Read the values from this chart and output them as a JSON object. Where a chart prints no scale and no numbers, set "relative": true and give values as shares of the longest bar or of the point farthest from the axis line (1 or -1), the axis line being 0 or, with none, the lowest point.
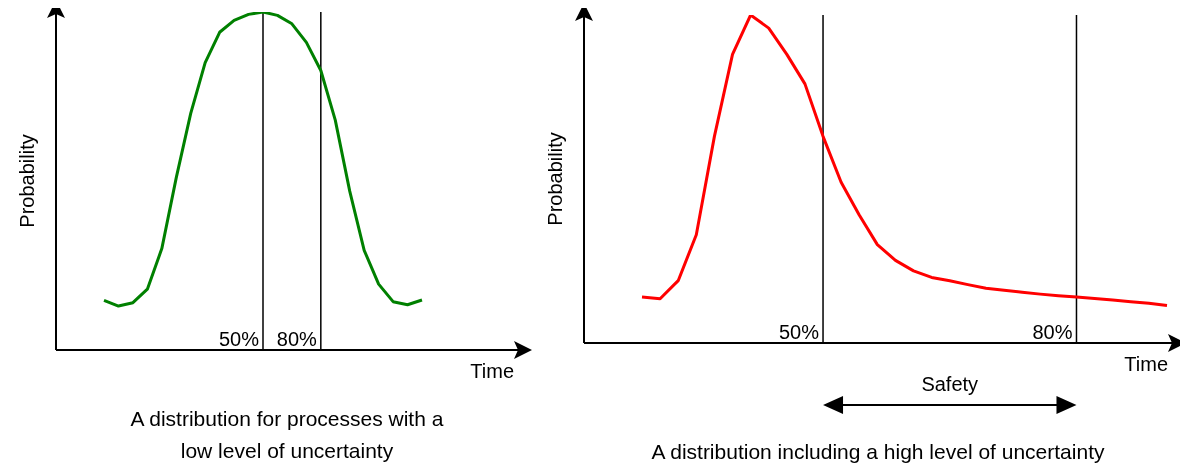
{
  "chart_data": [
    {
      "type": "line",
      "title": "A distribution for processes with a low level of uncertainty",
      "xlabel": "Time",
      "ylabel": "Probability",
      "relative": true,
      "categories": [
        null,
        null,
        null,
        null,
        null,
        null,
        null,
        null,
        null,
        null,
        null,
        null,
        null,
        null,
        null,
        null,
        null,
        null,
        null,
        null,
        null,
        null,
        null
      ],
      "series": [
        {
          "color": "#008000",
          "values": [
            0.147,
            0.13,
            0.14,
            0.18,
            0.3,
            0.51,
            0.7,
            0.85,
            0.94,
            0.975,
            0.993,
            1,
            0.99,
            0.965,
            0.91,
            0.827,
            0.68,
            0.47,
            0.295,
            0.195,
            0.143,
            0.134,
            0.148
          ]
        }
      ],
      "annotations": [
        "50%",
        "80%"
      ]
    },
    {
      "type": "line",
      "title": "A distribution including a high level of uncertainty",
      "xlabel": "Time",
      "ylabel": "Probability",
      "relative": true,
      "categories": [
        null,
        null,
        null,
        null,
        null,
        null,
        null,
        null,
        null,
        null,
        null,
        null,
        null,
        null,
        null,
        null,
        null,
        null,
        null,
        null,
        null,
        null,
        null,
        null,
        null,
        null,
        null,
        null,
        null,
        null
      ],
      "series": [
        {
          "color": "#ff0000",
          "values": [
            0.14,
            0.135,
            0.19,
            0.33,
            0.63,
            0.88,
            1,
            0.96,
            0.88,
            0.79,
            0.63,
            0.49,
            0.39,
            0.3,
            0.252,
            0.22,
            0.2,
            0.19,
            0.178,
            0.167,
            0.161,
            0.155,
            0.149,
            0.144,
            0.14,
            0.136,
            0.131,
            0.126,
            0.121,
            0.114
          ]
        }
      ],
      "annotations": [
        "50%",
        "80%",
        "Safety"
      ]
    }
  ]
}
